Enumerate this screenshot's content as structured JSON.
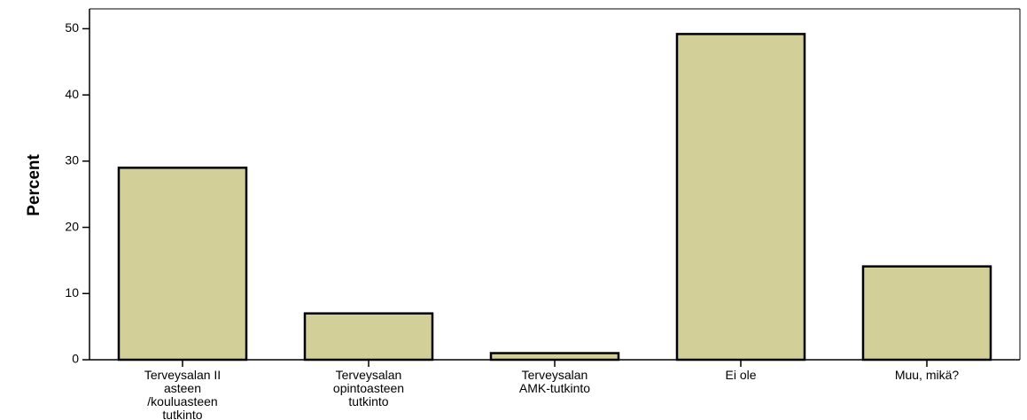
{
  "chart_data": {
    "type": "bar",
    "title": "",
    "xlabel": "",
    "ylabel": "Percent",
    "ylim": [
      0,
      53
    ],
    "yticks": [
      0,
      10,
      20,
      30,
      40,
      50
    ],
    "grid": false,
    "categories": [
      "Terveysalan II asteen /kouluasteen tutkinto",
      "Terveysalan opintoasteen tutkinto",
      "Terveysalan AMK-tutkinto",
      "Ei ole",
      "Muu, mikä?"
    ],
    "category_lines": [
      [
        "Terveysalan II",
        "asteen",
        "/kouluasteen",
        "tutkinto"
      ],
      [
        "Terveysalan",
        "opintoasteen",
        "tutkinto"
      ],
      [
        "Terveysalan",
        "AMK-tutkinto"
      ],
      [
        "Ei ole"
      ],
      [
        "Muu, mikä?"
      ]
    ],
    "values": [
      29,
      7,
      1,
      49.2,
      14.1
    ],
    "colors": {
      "bar_fill": "#d3cf99",
      "bar_stroke": "#000000",
      "axis": "#000000"
    }
  }
}
